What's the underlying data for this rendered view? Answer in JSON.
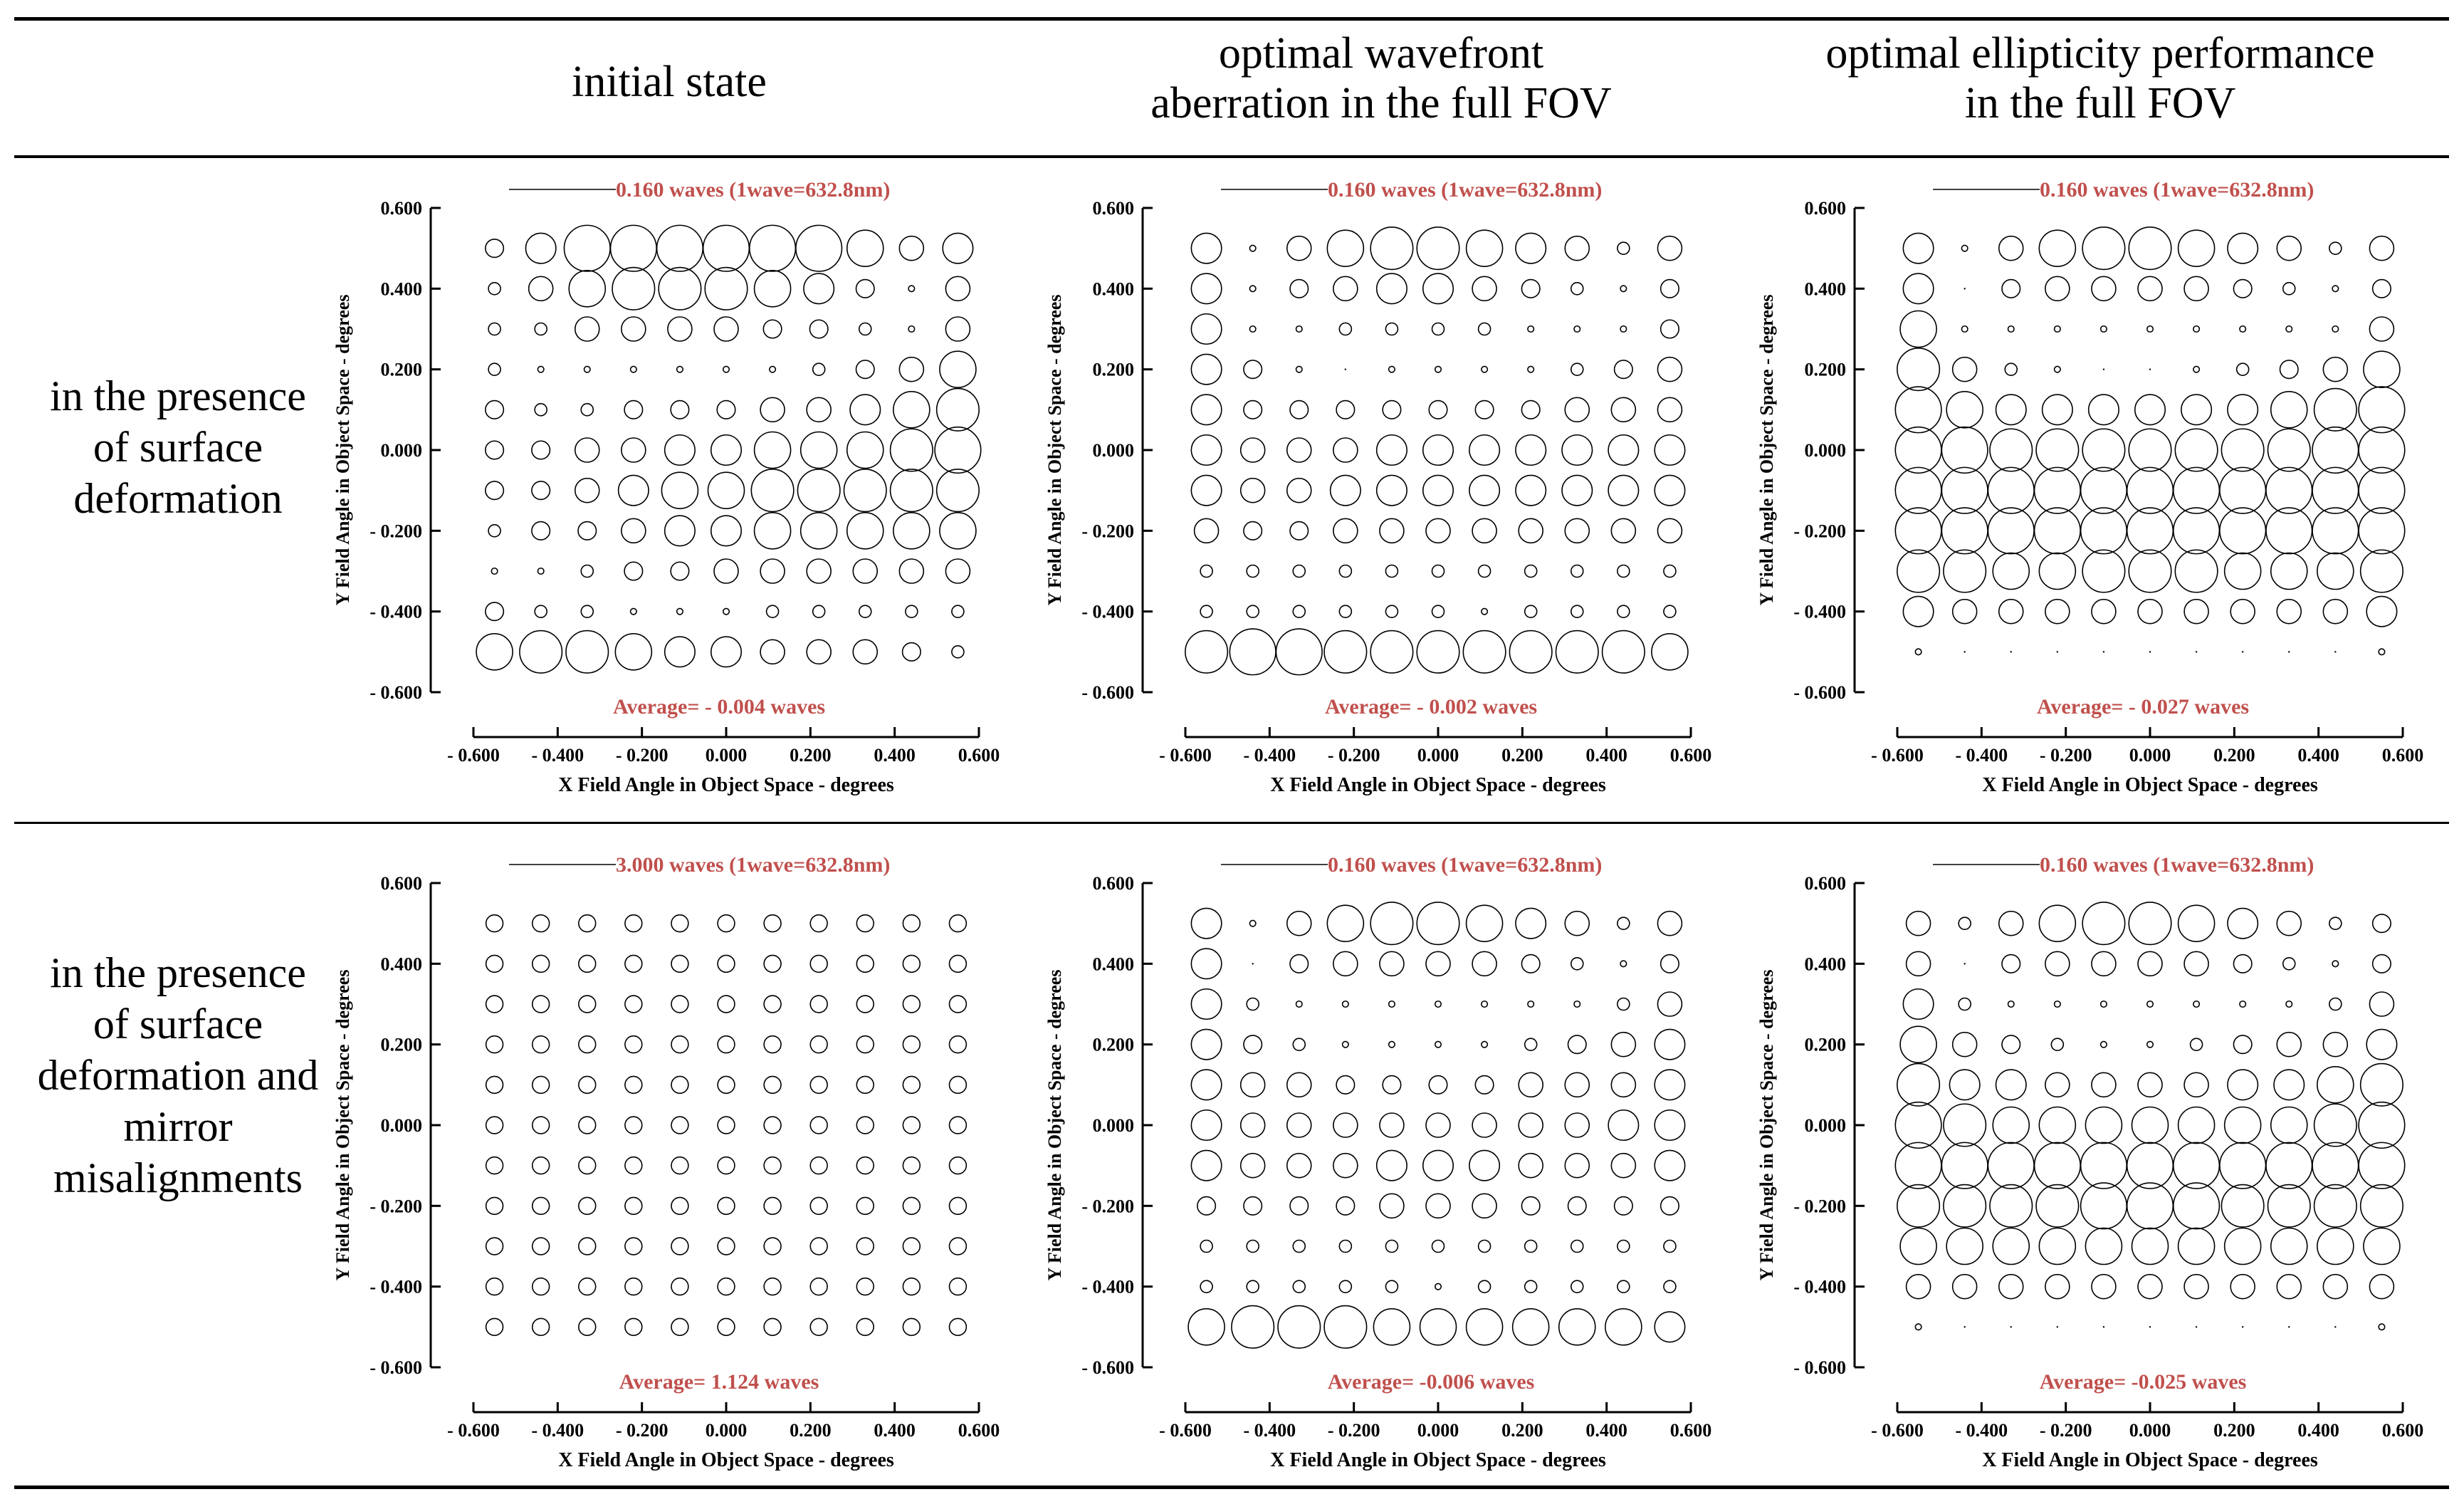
{
  "table": {
    "columns": [
      "initial state",
      "optimal wavefront aberration in the full FOV",
      "optimal ellipticity performance in the full FOV"
    ],
    "rows": [
      "in the presence of surface deformation",
      "in the presence of surface deformation and mirror misalignments"
    ]
  },
  "chart_data": [
    {
      "type": "scatter",
      "id": "r1c1",
      "legend": "0.160 waves (1wave=632.8nm)",
      "average": "Average= - 0.004 waves",
      "xlabel": "X Field Angle in Object Space - degrees",
      "ylabel": "Y Field Angle in Object Space - degrees",
      "xlim": [
        -0.6,
        0.6
      ],
      "ylim": [
        -0.6,
        0.6
      ],
      "xticks": [
        "- 0.600",
        "- 0.400",
        "- 0.200",
        "0.000",
        "0.200",
        "0.400",
        "0.600"
      ],
      "yticks": [
        "0.600",
        "0.400",
        "0.200",
        "0.000",
        "- 0.200",
        "- 0.400",
        "- 0.600"
      ],
      "scale_max": 0.16,
      "x": [
        -0.55,
        -0.44,
        -0.33,
        -0.22,
        -0.11,
        0,
        0.11,
        0.22,
        0.33,
        0.44,
        0.55
      ],
      "y": [
        0.5,
        0.4,
        0.3,
        0.2,
        0.1,
        0,
        -0.1,
        -0.2,
        -0.3,
        -0.4,
        -0.5
      ],
      "grid_values": [
        [
          0.03,
          0.05,
          0.08,
          0.1,
          0.11,
          0.11,
          0.1,
          0.08,
          0.06,
          0.04,
          0.05
        ],
        [
          0.02,
          0.04,
          0.06,
          0.07,
          0.07,
          0.07,
          0.06,
          0.05,
          0.03,
          0.01,
          0.04
        ],
        [
          0.02,
          0.02,
          0.04,
          0.04,
          0.04,
          0.04,
          0.03,
          0.03,
          0.02,
          0.01,
          0.04
        ],
        [
          0.02,
          0.01,
          0.01,
          0.01,
          0.01,
          0.01,
          0.01,
          0.02,
          0.03,
          0.04,
          0.06
        ],
        [
          0.03,
          0.02,
          0.02,
          0.03,
          0.03,
          0.03,
          0.04,
          0.04,
          0.05,
          0.06,
          0.07
        ],
        [
          0.03,
          0.03,
          0.04,
          0.04,
          0.05,
          0.05,
          0.06,
          0.06,
          0.06,
          0.07,
          0.08
        ],
        [
          0.03,
          0.03,
          0.04,
          0.05,
          0.06,
          0.06,
          0.07,
          0.07,
          0.07,
          0.07,
          0.07
        ],
        [
          0.02,
          0.03,
          0.03,
          0.04,
          0.05,
          0.05,
          0.06,
          0.06,
          0.06,
          0.06,
          0.06
        ],
        [
          0.01,
          0.01,
          0.02,
          0.03,
          0.03,
          0.04,
          0.04,
          0.04,
          0.04,
          0.04,
          0.04
        ],
        [
          0.03,
          0.02,
          0.02,
          0.01,
          0.01,
          0.01,
          0.02,
          0.02,
          0.02,
          0.02,
          0.02
        ],
        [
          0.06,
          0.07,
          0.07,
          0.06,
          0.05,
          0.05,
          0.04,
          0.04,
          0.04,
          0.03,
          0.02
        ]
      ]
    },
    {
      "type": "scatter",
      "id": "r1c2",
      "legend": "0.160 waves (1wave=632.8nm)",
      "average": "Average= - 0.002 waves",
      "xlabel": "X Field Angle in Object Space - degrees",
      "ylabel": "Y Field Angle in Object Space - degrees",
      "xlim": [
        -0.6,
        0.6
      ],
      "ylim": [
        -0.6,
        0.6
      ],
      "xticks": [
        "- 0.600",
        "- 0.400",
        "- 0.200",
        "0.000",
        "0.200",
        "0.400",
        "0.600"
      ],
      "yticks": [
        "0.600",
        "0.400",
        "0.200",
        "0.000",
        "- 0.200",
        "- 0.400",
        "- 0.600"
      ],
      "scale_max": 0.16,
      "x": [
        -0.55,
        -0.44,
        -0.33,
        -0.22,
        -0.11,
        0,
        0.11,
        0.22,
        0.33,
        0.44,
        0.55
      ],
      "y": [
        0.5,
        0.4,
        0.3,
        0.2,
        0.1,
        0,
        -0.1,
        -0.2,
        -0.3,
        -0.4,
        -0.5
      ],
      "grid_values": [
        [
          0.05,
          0.01,
          0.04,
          0.06,
          0.07,
          0.07,
          0.06,
          0.05,
          0.04,
          0.02,
          0.04
        ],
        [
          0.05,
          0.01,
          0.03,
          0.04,
          0.05,
          0.05,
          0.04,
          0.03,
          0.02,
          0.01,
          0.03
        ],
        [
          0.05,
          0.01,
          0.01,
          0.02,
          0.02,
          0.02,
          0.02,
          0.01,
          0.01,
          0.01,
          0.03
        ],
        [
          0.05,
          0.03,
          0.01,
          0.0,
          0.01,
          0.01,
          0.01,
          0.01,
          0.02,
          0.03,
          0.04
        ],
        [
          0.05,
          0.03,
          0.03,
          0.03,
          0.03,
          0.03,
          0.03,
          0.03,
          0.04,
          0.04,
          0.04
        ],
        [
          0.05,
          0.04,
          0.04,
          0.04,
          0.05,
          0.05,
          0.05,
          0.05,
          0.05,
          0.05,
          0.05
        ],
        [
          0.05,
          0.04,
          0.04,
          0.05,
          0.05,
          0.05,
          0.05,
          0.05,
          0.05,
          0.05,
          0.05
        ],
        [
          0.04,
          0.03,
          0.03,
          0.04,
          0.04,
          0.04,
          0.04,
          0.04,
          0.04,
          0.04,
          0.04
        ],
        [
          0.02,
          0.02,
          0.02,
          0.02,
          0.02,
          0.02,
          0.02,
          0.02,
          0.02,
          0.02,
          0.02
        ],
        [
          0.02,
          0.02,
          0.02,
          0.02,
          0.02,
          0.02,
          0.01,
          0.02,
          0.02,
          0.02,
          0.02
        ],
        [
          0.07,
          0.08,
          0.08,
          0.07,
          0.07,
          0.07,
          0.07,
          0.07,
          0.07,
          0.07,
          0.06
        ]
      ]
    },
    {
      "type": "scatter",
      "id": "r1c3",
      "legend": "0.160 waves (1wave=632.8nm)",
      "average": "Average= - 0.027 waves",
      "xlabel": "X Field Angle in Object Space - degrees",
      "ylabel": "Y Field Angle in Object Space - degrees",
      "xlim": [
        -0.6,
        0.6
      ],
      "ylim": [
        -0.6,
        0.6
      ],
      "xticks": [
        "- 0.600",
        "- 0.400",
        "- 0.200",
        "0.000",
        "0.200",
        "0.400",
        "0.600"
      ],
      "yticks": [
        "0.600",
        "0.400",
        "0.200",
        "0.000",
        "- 0.200",
        "- 0.400",
        "- 0.600"
      ],
      "scale_max": 0.16,
      "x": [
        -0.55,
        -0.44,
        -0.33,
        -0.22,
        -0.11,
        0,
        0.11,
        0.22,
        0.33,
        0.44,
        0.55
      ],
      "y": [
        0.5,
        0.4,
        0.3,
        0.2,
        0.1,
        0,
        -0.1,
        -0.2,
        -0.3,
        -0.4,
        -0.5
      ],
      "grid_values": [
        [
          0.05,
          0.01,
          0.04,
          0.06,
          0.07,
          0.07,
          0.06,
          0.05,
          0.04,
          0.02,
          0.04
        ],
        [
          0.05,
          0.0,
          0.03,
          0.04,
          0.04,
          0.04,
          0.04,
          0.03,
          0.02,
          0.01,
          0.03
        ],
        [
          0.06,
          0.01,
          0.01,
          0.01,
          0.01,
          0.01,
          0.01,
          0.01,
          0.01,
          0.01,
          0.04
        ],
        [
          0.07,
          0.04,
          0.02,
          0.01,
          0.0,
          0.0,
          0.01,
          0.02,
          0.03,
          0.04,
          0.06
        ],
        [
          0.08,
          0.06,
          0.05,
          0.05,
          0.05,
          0.05,
          0.05,
          0.05,
          0.06,
          0.07,
          0.08
        ],
        [
          0.09,
          0.08,
          0.07,
          0.07,
          0.07,
          0.07,
          0.07,
          0.07,
          0.07,
          0.08,
          0.09
        ],
        [
          0.09,
          0.09,
          0.09,
          0.09,
          0.1,
          0.1,
          0.1,
          0.09,
          0.09,
          0.09,
          0.09
        ],
        [
          0.08,
          0.08,
          0.08,
          0.08,
          0.09,
          0.09,
          0.09,
          0.08,
          0.08,
          0.08,
          0.08
        ],
        [
          0.07,
          0.07,
          0.06,
          0.06,
          0.07,
          0.07,
          0.07,
          0.06,
          0.06,
          0.06,
          0.07
        ],
        [
          0.05,
          0.04,
          0.04,
          0.04,
          0.04,
          0.04,
          0.04,
          0.04,
          0.04,
          0.04,
          0.05
        ],
        [
          0.01,
          0.0,
          0.0,
          0.0,
          0.0,
          0.0,
          0.0,
          0.0,
          0.0,
          0.0,
          0.01
        ]
      ]
    },
    {
      "type": "scatter",
      "id": "r2c1",
      "legend": "3.000 waves (1wave=632.8nm)",
      "average": "Average= 1.124 waves",
      "xlabel": "X Field Angle in Object Space - degrees",
      "ylabel": "Y Field Angle in Object Space - degrees",
      "xlim": [
        -0.6,
        0.6
      ],
      "ylim": [
        -0.6,
        0.6
      ],
      "xticks": [
        "- 0.600",
        "- 0.400",
        "- 0.200",
        "0.000",
        "0.200",
        "0.400",
        "0.600"
      ],
      "yticks": [
        "0.600",
        "0.400",
        "0.200",
        "0.000",
        "- 0.200",
        "- 0.400",
        "- 0.600"
      ],
      "scale_max": 3.0,
      "x": [
        -0.55,
        -0.44,
        -0.33,
        -0.22,
        -0.11,
        0,
        0.11,
        0.22,
        0.33,
        0.44,
        0.55
      ],
      "y": [
        0.5,
        0.4,
        0.3,
        0.2,
        0.1,
        0,
        -0.1,
        -0.2,
        -0.3,
        -0.4,
        -0.5
      ],
      "grid_values": [
        [
          1.12,
          1.12,
          1.12,
          1.12,
          1.12,
          1.12,
          1.12,
          1.12,
          1.12,
          1.12,
          1.12
        ],
        [
          1.12,
          1.12,
          1.12,
          1.12,
          1.12,
          1.12,
          1.12,
          1.12,
          1.12,
          1.12,
          1.12
        ],
        [
          1.12,
          1.12,
          1.12,
          1.12,
          1.12,
          1.12,
          1.12,
          1.12,
          1.12,
          1.12,
          1.12
        ],
        [
          1.12,
          1.12,
          1.12,
          1.12,
          1.12,
          1.12,
          1.12,
          1.12,
          1.12,
          1.12,
          1.12
        ],
        [
          1.12,
          1.12,
          1.12,
          1.12,
          1.12,
          1.12,
          1.12,
          1.12,
          1.12,
          1.12,
          1.12
        ],
        [
          1.12,
          1.12,
          1.12,
          1.12,
          1.12,
          1.12,
          1.12,
          1.12,
          1.12,
          1.12,
          1.12
        ],
        [
          1.12,
          1.12,
          1.12,
          1.12,
          1.12,
          1.12,
          1.12,
          1.12,
          1.12,
          1.12,
          1.12
        ],
        [
          1.12,
          1.12,
          1.12,
          1.12,
          1.12,
          1.12,
          1.12,
          1.12,
          1.12,
          1.12,
          1.12
        ],
        [
          1.12,
          1.12,
          1.12,
          1.12,
          1.12,
          1.12,
          1.12,
          1.12,
          1.12,
          1.12,
          1.12
        ],
        [
          1.12,
          1.12,
          1.12,
          1.12,
          1.12,
          1.12,
          1.12,
          1.12,
          1.12,
          1.12,
          1.12
        ],
        [
          1.12,
          1.12,
          1.12,
          1.12,
          1.12,
          1.12,
          1.12,
          1.12,
          1.12,
          1.12,
          1.12
        ]
      ]
    },
    {
      "type": "scatter",
      "id": "r2c2",
      "legend": "0.160 waves (1wave=632.8nm)",
      "average": "Average= -0.006 waves",
      "xlabel": "X Field Angle in Object Space - degrees",
      "ylabel": "Y Field Angle in Object Space - degrees",
      "xlim": [
        -0.6,
        0.6
      ],
      "ylim": [
        -0.6,
        0.6
      ],
      "xticks": [
        "- 0.600",
        "- 0.400",
        "- 0.200",
        "0.000",
        "0.200",
        "0.400",
        "0.600"
      ],
      "yticks": [
        "0.600",
        "0.400",
        "0.200",
        "0.000",
        "- 0.200",
        "- 0.400",
        "- 0.600"
      ],
      "scale_max": 0.16,
      "x": [
        -0.55,
        -0.44,
        -0.33,
        -0.22,
        -0.11,
        0,
        0.11,
        0.22,
        0.33,
        0.44,
        0.55
      ],
      "y": [
        0.5,
        0.4,
        0.3,
        0.2,
        0.1,
        0,
        -0.1,
        -0.2,
        -0.3,
        -0.4,
        -0.5
      ],
      "grid_values": [
        [
          0.05,
          0.01,
          0.04,
          0.06,
          0.07,
          0.07,
          0.06,
          0.05,
          0.04,
          0.02,
          0.04
        ],
        [
          0.05,
          0.0,
          0.03,
          0.04,
          0.04,
          0.04,
          0.04,
          0.03,
          0.02,
          0.01,
          0.03
        ],
        [
          0.05,
          0.02,
          0.01,
          0.01,
          0.01,
          0.01,
          0.01,
          0.01,
          0.01,
          0.02,
          0.04
        ],
        [
          0.05,
          0.03,
          0.02,
          0.01,
          0.01,
          0.01,
          0.01,
          0.02,
          0.03,
          0.04,
          0.05
        ],
        [
          0.05,
          0.04,
          0.04,
          0.03,
          0.03,
          0.03,
          0.03,
          0.04,
          0.04,
          0.04,
          0.05
        ],
        [
          0.05,
          0.04,
          0.04,
          0.04,
          0.04,
          0.04,
          0.04,
          0.04,
          0.04,
          0.05,
          0.05
        ],
        [
          0.05,
          0.04,
          0.04,
          0.04,
          0.05,
          0.05,
          0.05,
          0.04,
          0.04,
          0.04,
          0.05
        ],
        [
          0.03,
          0.03,
          0.03,
          0.03,
          0.04,
          0.04,
          0.04,
          0.03,
          0.03,
          0.03,
          0.03
        ],
        [
          0.02,
          0.02,
          0.02,
          0.02,
          0.02,
          0.02,
          0.02,
          0.02,
          0.02,
          0.02,
          0.02
        ],
        [
          0.02,
          0.02,
          0.02,
          0.02,
          0.02,
          0.01,
          0.02,
          0.02,
          0.02,
          0.02,
          0.02
        ],
        [
          0.06,
          0.07,
          0.07,
          0.07,
          0.06,
          0.06,
          0.06,
          0.06,
          0.06,
          0.06,
          0.05
        ]
      ]
    },
    {
      "type": "scatter",
      "id": "r2c3",
      "legend": "0.160 waves (1wave=632.8nm)",
      "average": "Average= -0.025 waves",
      "xlabel": "X Field Angle in Object Space - degrees",
      "ylabel": "Y Field Angle in Object Space - degrees",
      "xlim": [
        -0.6,
        0.6
      ],
      "ylim": [
        -0.6,
        0.6
      ],
      "xticks": [
        "- 0.600",
        "- 0.400",
        "- 0.200",
        "0.000",
        "0.200",
        "0.400",
        "0.600"
      ],
      "yticks": [
        "0.600",
        "0.400",
        "0.200",
        "0.000",
        "- 0.200",
        "- 0.400",
        "- 0.600"
      ],
      "scale_max": 0.16,
      "x": [
        -0.55,
        -0.44,
        -0.33,
        -0.22,
        -0.11,
        0,
        0.11,
        0.22,
        0.33,
        0.44,
        0.55
      ],
      "y": [
        0.5,
        0.4,
        0.3,
        0.2,
        0.1,
        0,
        -0.1,
        -0.2,
        -0.3,
        -0.4,
        -0.5
      ],
      "grid_values": [
        [
          0.04,
          0.02,
          0.04,
          0.06,
          0.07,
          0.07,
          0.06,
          0.05,
          0.04,
          0.02,
          0.03
        ],
        [
          0.04,
          0.0,
          0.03,
          0.04,
          0.04,
          0.04,
          0.04,
          0.03,
          0.02,
          0.01,
          0.03
        ],
        [
          0.05,
          0.02,
          0.01,
          0.01,
          0.01,
          0.01,
          0.01,
          0.01,
          0.01,
          0.02,
          0.04
        ],
        [
          0.06,
          0.04,
          0.03,
          0.02,
          0.01,
          0.01,
          0.02,
          0.03,
          0.04,
          0.04,
          0.05
        ],
        [
          0.07,
          0.05,
          0.05,
          0.04,
          0.04,
          0.04,
          0.04,
          0.05,
          0.05,
          0.06,
          0.07
        ],
        [
          0.08,
          0.07,
          0.06,
          0.06,
          0.06,
          0.06,
          0.06,
          0.06,
          0.06,
          0.07,
          0.08
        ],
        [
          0.08,
          0.08,
          0.08,
          0.08,
          0.08,
          0.08,
          0.08,
          0.08,
          0.08,
          0.08,
          0.08
        ],
        [
          0.07,
          0.07,
          0.07,
          0.07,
          0.08,
          0.08,
          0.08,
          0.07,
          0.07,
          0.07,
          0.07
        ],
        [
          0.06,
          0.06,
          0.06,
          0.06,
          0.06,
          0.06,
          0.06,
          0.06,
          0.06,
          0.06,
          0.06
        ],
        [
          0.04,
          0.04,
          0.04,
          0.04,
          0.04,
          0.04,
          0.04,
          0.04,
          0.04,
          0.04,
          0.04
        ],
        [
          0.01,
          0.0,
          0.0,
          0.0,
          0.0,
          0.0,
          0.0,
          0.0,
          0.0,
          0.0,
          0.01
        ]
      ]
    }
  ]
}
